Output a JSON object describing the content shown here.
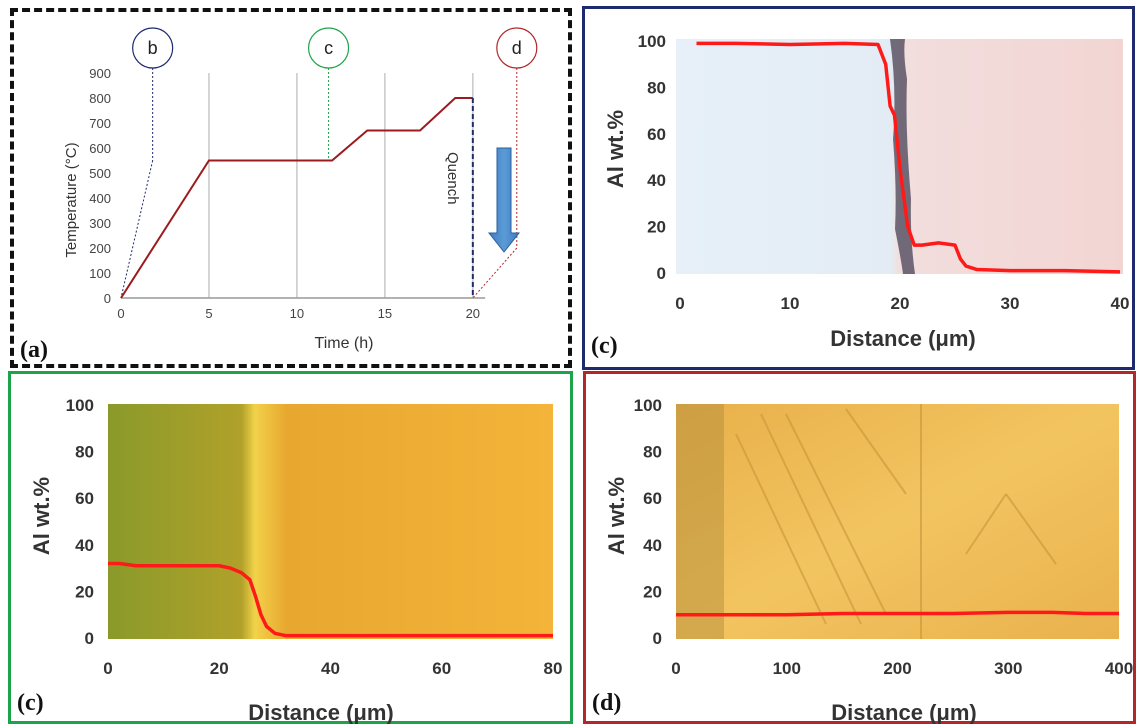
{
  "chart_data": [
    {
      "panel": "a",
      "type": "line",
      "xlabel": "Time (h)",
      "ylabel": "Temperature (°C)",
      "xlim": [
        0,
        22
      ],
      "ylim": [
        0,
        900
      ],
      "xticks": [
        0,
        5,
        10,
        15,
        20
      ],
      "yticks": [
        0,
        100,
        200,
        300,
        400,
        500,
        600,
        700,
        800,
        900
      ],
      "grid": "vertical",
      "series": [
        {
          "color": "#9b1b1e",
          "x": [
            0,
            5,
            12,
            14,
            17,
            19,
            20,
            20
          ],
          "y": [
            0,
            550,
            550,
            670,
            670,
            800,
            800,
            0
          ]
        }
      ],
      "markers": [
        {
          "label": "b",
          "color": "#1f2a6e",
          "at_x": 1.8,
          "at_y": 550
        },
        {
          "label": "c",
          "color": "#1ea34a",
          "at_x": 11.8,
          "at_y": 550
        },
        {
          "label": "d",
          "color": "#b3262a",
          "at_x": 22.5,
          "at_y": 200
        }
      ],
      "annotation": "Quench",
      "panel_label": "(a)"
    },
    {
      "panel": "b",
      "type": "line",
      "xlabel": "Distance (μm)",
      "ylabel": "Al wt.%",
      "xlim": [
        0,
        40
      ],
      "ylim": [
        0,
        100
      ],
      "xticks": [
        0,
        10,
        20,
        30,
        40
      ],
      "yticks": [
        0,
        20,
        40,
        60,
        80,
        100
      ],
      "series": [
        {
          "color": "#ff1a1a",
          "x": [
            1.5,
            5,
            10,
            15,
            18,
            18.7,
            19.1,
            19.5,
            20.0,
            20.7,
            21.3,
            22,
            23.5,
            25,
            25.5,
            26,
            27,
            30,
            35,
            40
          ],
          "y": [
            99,
            99,
            98.5,
            99,
            98.5,
            90,
            72,
            68,
            45,
            20,
            12,
            12,
            13,
            12,
            6,
            3,
            1.5,
            1,
            1,
            0.5
          ]
        }
      ],
      "panel_label": "(c)"
    },
    {
      "panel": "c",
      "type": "line",
      "xlabel": "Distance (μm)",
      "ylabel": "Al wt.%",
      "xlim": [
        0,
        80
      ],
      "ylim": [
        0,
        100
      ],
      "xticks": [
        0,
        20,
        40,
        60,
        80
      ],
      "yticks": [
        0,
        20,
        40,
        60,
        80,
        100
      ],
      "series": [
        {
          "color": "#ff1a1a",
          "x": [
            0,
            2,
            5,
            10,
            15,
            20,
            22,
            24,
            25.5,
            26.5,
            27.5,
            28.5,
            30,
            32,
            35,
            40,
            45,
            50,
            60,
            70,
            80
          ],
          "y": [
            32,
            32,
            31,
            31,
            31,
            31,
            30,
            28,
            25,
            18,
            10,
            5,
            2,
            1,
            1,
            1,
            1,
            1,
            1,
            1,
            1
          ]
        }
      ],
      "panel_label": "(c)"
    },
    {
      "panel": "d",
      "type": "line",
      "xlabel": "Distance (μm)",
      "ylabel": "Al wt.%",
      "xlim": [
        0,
        400
      ],
      "ylim": [
        0,
        100
      ],
      "xticks": [
        0,
        100,
        200,
        300,
        400
      ],
      "yticks": [
        0,
        20,
        40,
        60,
        80,
        100
      ],
      "series": [
        {
          "color": "#ff1a1a",
          "x": [
            0,
            50,
            100,
            150,
            200,
            250,
            300,
            340,
            370,
            400
          ],
          "y": [
            10,
            10,
            10,
            10.5,
            10.5,
            10.5,
            11,
            11,
            10.5,
            10.5
          ]
        }
      ],
      "panel_label": "(d)"
    }
  ]
}
